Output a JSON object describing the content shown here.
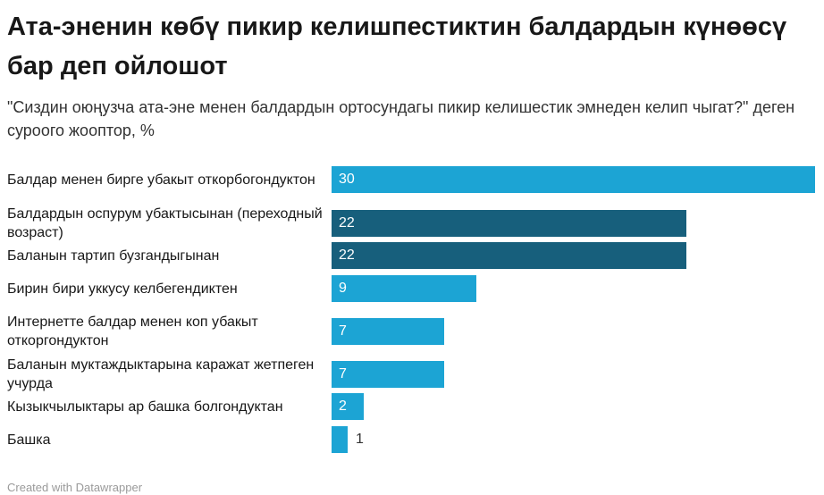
{
  "header": {
    "title": "Ата-эненин көбү пикир келишпестиктин балдардын күнөөсү бар деп ойлошот",
    "subtitle": "\"Сиздин оюңузча ата-эне менен балдардын ортосундагы пикир келишестик эмнеден келип чыгат?\" деген суроого жооптор, %"
  },
  "footer": {
    "credit": "Created with Datawrapper"
  },
  "colors": {
    "bar_light": "#1ca4d4",
    "bar_dark": "#175f7c"
  },
  "chart_data": {
    "type": "bar",
    "orientation": "horizontal",
    "title": "Ата-эненин көбү пикир келишпестиктин балдардын күнөөсү бар деп ойлошот",
    "subtitle": "\"Сиздин оюңузча ата-эне менен балдардын ортосундагы пикир келишестик эмнеден келип чыгат?\" деген суроого жооптор, %",
    "categories": [
      "Балдар менен бирге убакыт откорбогондуктон",
      "Балдардын оспурум убактысынан (переходный возраст)",
      "Баланын тартип бузгандыгынан",
      "Бирин бири уккусу келбегендиктен",
      "Интернетте балдар менен коп убакыт откоргондуктон",
      "Баланын муктаждыктарына каражат жетпеген учурда",
      "Кызыкчылыктары ар башка болгондуктан",
      "Башка"
    ],
    "values": [
      30,
      22,
      22,
      9,
      7,
      7,
      2,
      1
    ],
    "bar_colors": [
      "#1ca4d4",
      "#175f7c",
      "#175f7c",
      "#1ca4d4",
      "#1ca4d4",
      "#1ca4d4",
      "#1ca4d4",
      "#1ca4d4"
    ],
    "xlim": [
      0,
      30
    ],
    "data_labels": true,
    "grid": false,
    "legend": "none"
  }
}
